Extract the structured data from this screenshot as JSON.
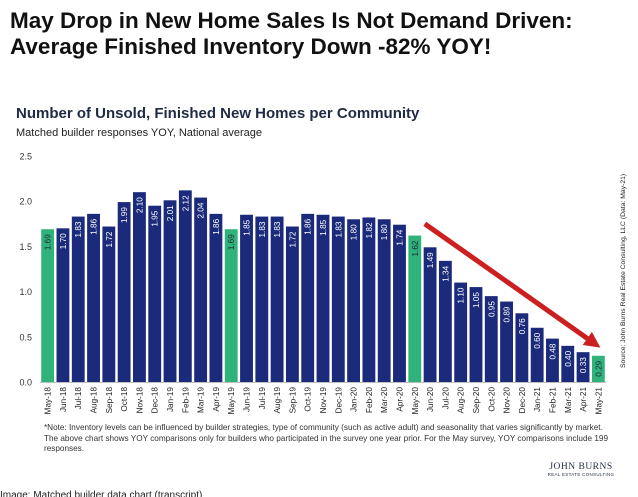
{
  "headline": "May Drop in New Home Sales Is Not Demand Driven: Average Finished Inventory Down -82% YOY!",
  "chart_data": {
    "type": "bar",
    "title": "Number of Unsold, Finished New Homes per Community",
    "subtitle": "Matched builder responses YOY, National average",
    "ylim": [
      0,
      2.5
    ],
    "yticks": [
      "0.0",
      "0.5",
      "1.0",
      "1.5",
      "2.0",
      "2.5"
    ],
    "grid": false,
    "categories": [
      "May-18",
      "Jun-18",
      "Jul-18",
      "Aug-18",
      "Sep-18",
      "Oct-18",
      "Nov-18",
      "Dec-18",
      "Jan-19",
      "Feb-19",
      "Mar-19",
      "Apr-19",
      "May-19",
      "Jun-19",
      "Jul-19",
      "Aug-19",
      "Sep-19",
      "Oct-19",
      "Nov-19",
      "Dec-19",
      "Jan-20",
      "Feb-20",
      "Mar-20",
      "Apr-20",
      "May-20",
      "Jun-20",
      "Jul-20",
      "Aug-20",
      "Sep-20",
      "Oct-20",
      "Nov-20",
      "Dec-20",
      "Jan-21",
      "Feb-21",
      "Mar-21",
      "Apr-21",
      "May-21"
    ],
    "values": [
      1.69,
      1.7,
      1.83,
      1.86,
      1.72,
      1.99,
      2.1,
      1.95,
      2.01,
      2.12,
      2.04,
      1.86,
      1.69,
      1.85,
      1.83,
      1.83,
      1.72,
      1.86,
      1.85,
      1.83,
      1.8,
      1.82,
      1.8,
      1.74,
      1.62,
      1.49,
      1.34,
      1.1,
      1.05,
      0.95,
      0.89,
      0.76,
      0.6,
      0.48,
      0.4,
      0.33,
      0.29
    ],
    "value_labels": [
      "1.69",
      "1.70",
      "1.83",
      "1.86",
      "1.72",
      "1.99",
      "2.10",
      "1.95",
      "2.01",
      "2.12",
      "2.04",
      "1.86",
      "1.69",
      "1.85",
      "1.83",
      "1.83",
      "1.72",
      "1.86",
      "1.85",
      "1.83",
      "1.80",
      "1.82",
      "1.80",
      "1.74",
      "1.62",
      "1.49",
      "1.34",
      "1.10",
      "1.05",
      "0.95",
      "0.89",
      "0.76",
      "0.60",
      "0.48",
      "0.40",
      "0.33",
      "0.29"
    ],
    "highlighted_categories": [
      "May-18",
      "May-19",
      "May-20",
      "May-21"
    ],
    "colors": {
      "bar": "#1b2a7a",
      "highlight": "#2fb37a",
      "arrow": "#cc1f1f",
      "label_dark": "#ffffff",
      "label_light": "#1b2a3a"
    },
    "trend_arrow": {
      "from": "May-20",
      "to": "May-21"
    },
    "source": "Source: John Burns Real Estate Consulting, LLC (Data: May-21)"
  },
  "note": "*Note: Inventory levels can be influenced by builder strategies, type of community (such as active adult) and seasonality that varies significantly by market. The above chart shows YOY comparisons only for builders who participated in the survey one year prior. For the May survey, YOY comparisons include 199 responses.",
  "logo": {
    "main": "JOHN BURNS",
    "sub": "REAL ESTATE CONSULTING"
  },
  "footer": "Image: Matched builder data chart (transcript)"
}
